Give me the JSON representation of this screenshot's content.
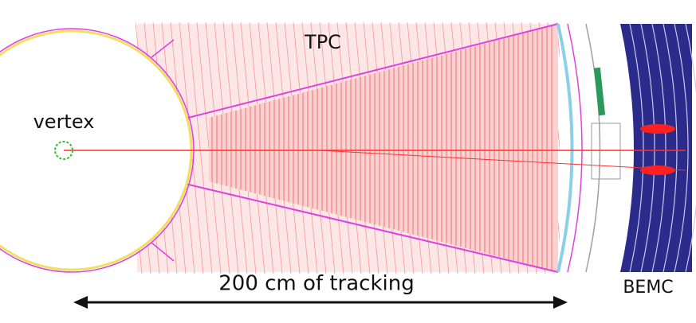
{
  "labels": {
    "tpc": "TPC",
    "vertex": "vertex",
    "tracking": "200 cm of tracking",
    "bemc": "BEMC"
  }
}
